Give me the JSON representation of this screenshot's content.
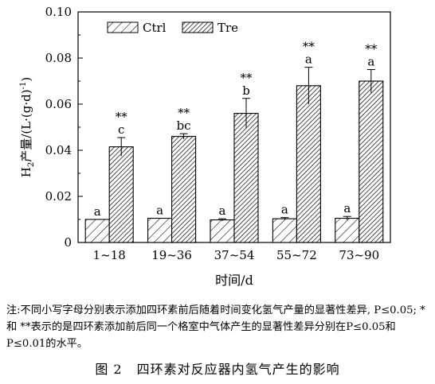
{
  "chart_data": {
    "type": "bar",
    "xlabel": "时间/d",
    "ylabel": {
      "prefix": "H",
      "sub": "2",
      "rest": "产量/(L·(g·d)",
      "sup": "-1",
      "end": ")"
    },
    "ylim": [
      0,
      0.1
    ],
    "yticks": [
      "0",
      "0.02",
      "0.04",
      "0.06",
      "0.08",
      "0.10"
    ],
    "ytick_values": [
      0,
      0.02,
      0.04,
      0.06,
      0.08,
      0.1
    ],
    "categories": [
      "1~18",
      "19~36",
      "37~54",
      "55~72",
      "73~90"
    ],
    "legend_position": "top-left",
    "series": [
      {
        "name": "Ctrl",
        "pattern": "sparse-hatch",
        "values": [
          0.01,
          0.0105,
          0.0098,
          0.0103,
          0.0105
        ],
        "errors": [
          0,
          0,
          0.0005,
          0.0005,
          0.0008
        ],
        "letters": [
          "a",
          "a",
          "a",
          "a",
          "a"
        ]
      },
      {
        "name": "Tre",
        "pattern": "dense-hatch",
        "values": [
          0.0415,
          0.046,
          0.056,
          0.068,
          0.07
        ],
        "errors": [
          0.004,
          0.0012,
          0.0065,
          0.008,
          0.005
        ],
        "letters": [
          "c",
          "bc",
          "b",
          "a",
          "a"
        ],
        "stars": [
          "**",
          "**",
          "**",
          "**",
          "**"
        ]
      }
    ]
  },
  "note": "注:不同小写字母分别表示添加四环素前后随着时间变化氢气产量的显著性差异, P≤0.05; *和 **表示的是四环素添加前后同一个格室中气体产生的显著性差异分别在P≤0.05和P≤0.01的水平。",
  "caption": {
    "number": "图 2",
    "title": "四环素对反应器内氢气产生的影响"
  }
}
